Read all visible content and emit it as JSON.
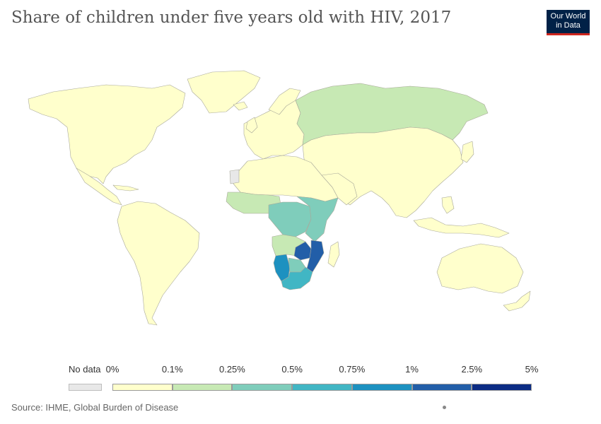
{
  "title": "Share of children under five years old with HIV, 2017",
  "logo": {
    "line1": "Our World",
    "line2": "in Data"
  },
  "legend": {
    "no_data_label": "No data",
    "no_data_color": "#e8e8e8",
    "ticks": [
      "0%",
      "0.1%",
      "0.25%",
      "0.5%",
      "0.75%",
      "1%",
      "2.5%",
      "5%"
    ],
    "bins": [
      {
        "from": "0%",
        "to": "0.1%",
        "color": "#ffffcc"
      },
      {
        "from": "0.1%",
        "to": "0.25%",
        "color": "#c7e9b4"
      },
      {
        "from": "0.25%",
        "to": "0.5%",
        "color": "#7fcdbb"
      },
      {
        "from": "0.5%",
        "to": "0.75%",
        "color": "#41b6c4"
      },
      {
        "from": "0.75%",
        "to": "1%",
        "color": "#1d91c0"
      },
      {
        "from": "1%",
        "to": "2.5%",
        "color": "#225ea8"
      },
      {
        "from": "2.5%",
        "to": "5%",
        "color": "#0c2c84"
      }
    ]
  },
  "regions": [
    {
      "name": "North America",
      "color": "#ffffcc"
    },
    {
      "name": "Greenland",
      "color": "#ffffcc"
    },
    {
      "name": "South America",
      "color": "#ffffcc"
    },
    {
      "name": "Europe",
      "color": "#ffffcc"
    },
    {
      "name": "Russia",
      "color": "#c7e9b4"
    },
    {
      "name": "Asia",
      "color": "#ffffcc"
    },
    {
      "name": "North Africa",
      "color": "#ffffcc"
    },
    {
      "name": "West Africa",
      "color": "#c7e9b4"
    },
    {
      "name": "Central Africa",
      "color": "#7fcdbb"
    },
    {
      "name": "East Africa",
      "color": "#7fcdbb"
    },
    {
      "name": "Namibia",
      "color": "#1d91c0"
    },
    {
      "name": "Zimbabwe",
      "color": "#225ea8"
    },
    {
      "name": "Mozambique",
      "color": "#225ea8"
    },
    {
      "name": "South Africa",
      "color": "#41b6c4"
    },
    {
      "name": "Madagascar",
      "color": "#ffffcc"
    },
    {
      "name": "Australia",
      "color": "#ffffcc"
    },
    {
      "name": "Indonesia",
      "color": "#ffffcc"
    },
    {
      "name": "Western Sahara",
      "color": "#e8e8e8"
    }
  ],
  "source": "Source: IHME, Global Burden of Disease"
}
